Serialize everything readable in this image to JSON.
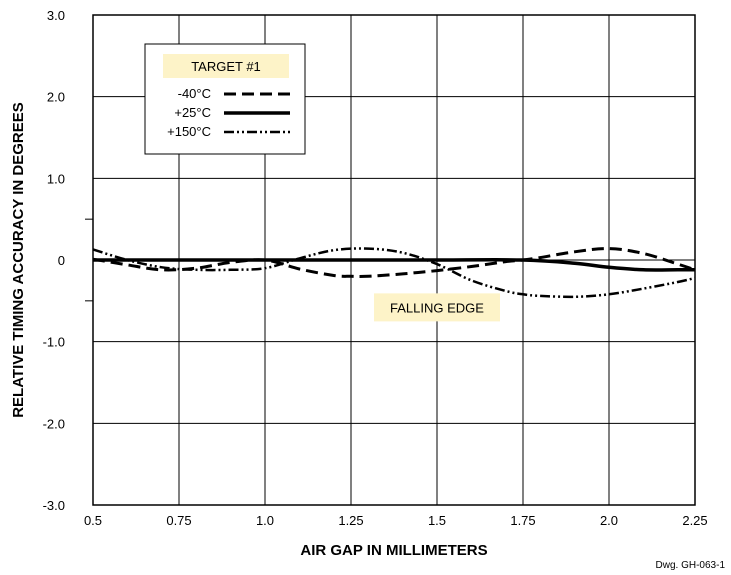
{
  "chart_data": {
    "type": "line",
    "xlabel": "AIR GAP IN MILLIMETERS",
    "ylabel": "RELATIVE TIMING ACCURACY IN DEGREES",
    "xlim": [
      0.5,
      2.25
    ],
    "ylim": [
      -3.0,
      3.0
    ],
    "grid": true,
    "x_ticks": [
      {
        "value": 0.5,
        "label": "0.5"
      },
      {
        "value": 0.75,
        "label": "0.75"
      },
      {
        "value": 1.0,
        "label": "1.0"
      },
      {
        "value": 1.25,
        "label": "1.25"
      },
      {
        "value": 1.5,
        "label": "1.5"
      },
      {
        "value": 1.75,
        "label": "1.75"
      },
      {
        "value": 2.0,
        "label": "2.0"
      },
      {
        "value": 2.25,
        "label": "2.25"
      }
    ],
    "y_ticks": [
      {
        "value": 3.0,
        "label": "3.0"
      },
      {
        "value": 2.0,
        "label": "2.0"
      },
      {
        "value": 1.0,
        "label": "1.0"
      },
      {
        "value": 0,
        "label": "0"
      },
      {
        "value": -1.0,
        "label": "-1.0"
      },
      {
        "value": -2.0,
        "label": "-2.0"
      },
      {
        "value": -3.0,
        "label": "-3.0"
      }
    ],
    "minor_y_ticks": [
      0.5,
      -0.5
    ],
    "legend": {
      "title": "TARGET #1",
      "placement": "top-left",
      "title_fill": "#fdf3c8"
    },
    "annotation": {
      "text": "FALLING EDGE",
      "x": 1.5,
      "y": -0.58,
      "fill": "#fdf3c8"
    },
    "series": [
      {
        "name": "-40°C",
        "style": "dashed",
        "x": [
          0.5,
          0.6,
          0.7,
          0.8,
          0.9,
          1.0,
          1.1,
          1.2,
          1.25,
          1.3,
          1.4,
          1.5,
          1.6,
          1.7,
          1.75,
          1.8,
          1.9,
          2.0,
          2.1,
          2.2,
          2.25
        ],
        "y": [
          0.01,
          -0.06,
          -0.12,
          -0.1,
          -0.03,
          0.0,
          -0.11,
          -0.19,
          -0.2,
          -0.2,
          -0.17,
          -0.13,
          -0.08,
          -0.02,
          0.0,
          0.03,
          0.1,
          0.14,
          0.08,
          -0.05,
          -0.12
        ]
      },
      {
        "name": "+25°C",
        "style": "solid",
        "x": [
          0.5,
          0.75,
          1.0,
          1.25,
          1.5,
          1.75,
          1.9,
          2.0,
          2.1,
          2.2,
          2.25
        ],
        "y": [
          0.0,
          0.0,
          0.0,
          0.0,
          0.0,
          0.0,
          -0.04,
          -0.09,
          -0.12,
          -0.12,
          -0.12
        ]
      },
      {
        "name": "+150°C",
        "style": "dash-dot-dot",
        "x": [
          0.5,
          0.6,
          0.7,
          0.8,
          0.9,
          1.0,
          1.1,
          1.2,
          1.3,
          1.4,
          1.5,
          1.6,
          1.7,
          1.75,
          1.8,
          1.9,
          2.0,
          2.1,
          2.2,
          2.25
        ],
        "y": [
          0.13,
          0.0,
          -0.09,
          -0.12,
          -0.12,
          -0.1,
          0.02,
          0.12,
          0.14,
          0.09,
          -0.05,
          -0.25,
          -0.38,
          -0.42,
          -0.44,
          -0.45,
          -0.42,
          -0.35,
          -0.27,
          -0.22
        ]
      }
    ]
  },
  "footer": {
    "drawing_number": "Dwg. GH-063-1"
  }
}
